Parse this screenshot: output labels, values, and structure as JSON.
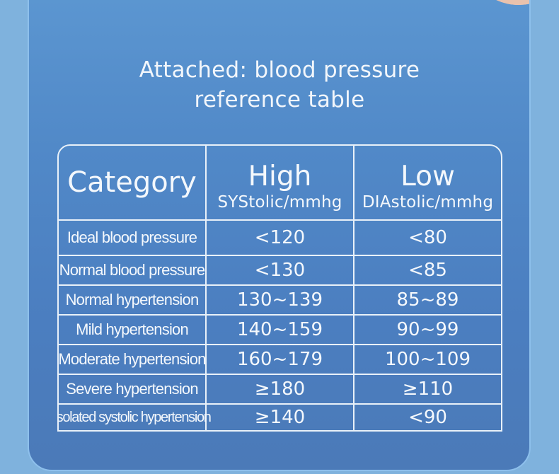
{
  "title_line1": "Attached: blood pressure",
  "title_line2": "reference table",
  "table": {
    "header": {
      "category": "Category",
      "high": "High",
      "high_sub": "SYStolic/mmhg",
      "low": "Low",
      "low_sub": "DIAstolic/mmhg"
    },
    "rows": [
      {
        "category": "Ideal blood pressure",
        "high": "<120",
        "low": "<80"
      },
      {
        "category": "Normal blood pressure",
        "high": "<130",
        "low": "<85"
      },
      {
        "category": "Normal hypertension",
        "high": "130~139",
        "low": "85~89"
      },
      {
        "category": "Mild hypertension",
        "high": "140~159",
        "low": "90~99"
      },
      {
        "category": "Moderate hypertension",
        "high": "160~179",
        "low": "100~109"
      },
      {
        "category": "Severe hypertension",
        "high": "≥180",
        "low": "≥110"
      },
      {
        "category": "Isolated systolic hypertension",
        "high": "≥140",
        "low": "<90"
      }
    ]
  },
  "colors": {
    "background": "#7fb2dd",
    "card": "#5189c8",
    "text": "#f4f8fc",
    "decoration": "#f2d3c1"
  }
}
